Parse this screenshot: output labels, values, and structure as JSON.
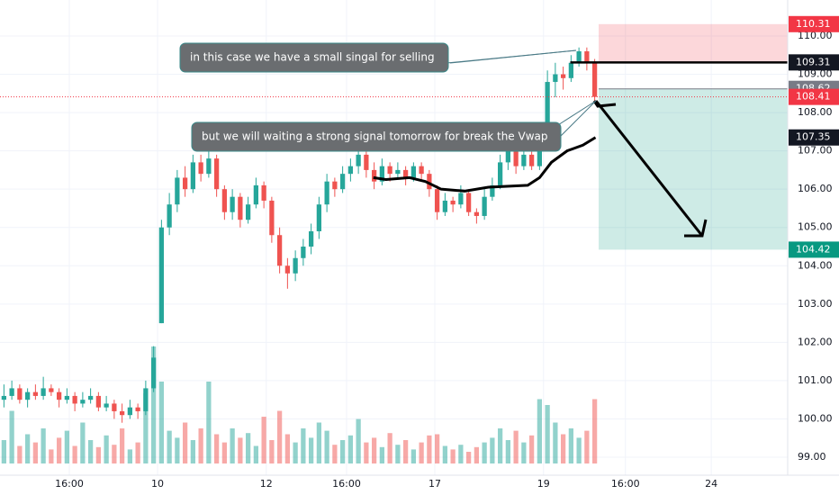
{
  "chart_data": {
    "type": "candlestick",
    "xlim": [
      0,
      100
    ],
    "ylim": [
      98.53,
      110.94
    ],
    "xticks": [
      {
        "value": 8.8,
        "label": "16:00"
      },
      {
        "value": 20,
        "label": "10"
      },
      {
        "value": 33.8,
        "label": "12"
      },
      {
        "value": 44,
        "label": "16:00"
      },
      {
        "value": 55.2,
        "label": "17"
      },
      {
        "value": 69,
        "label": "19"
      },
      {
        "value": 79.4,
        "label": "16:00"
      },
      {
        "value": 90.3,
        "label": "24"
      }
    ],
    "yticks": [
      {
        "value": 99,
        "label": "99.00"
      },
      {
        "value": 100,
        "label": "100.00"
      },
      {
        "value": 101,
        "label": "101.00"
      },
      {
        "value": 102,
        "label": "102.00"
      },
      {
        "value": 103,
        "label": "103.00"
      },
      {
        "value": 104,
        "label": "104.00"
      },
      {
        "value": 105,
        "label": "105.00"
      },
      {
        "value": 106,
        "label": "106.00"
      },
      {
        "value": 107,
        "label": "107.00"
      },
      {
        "value": 108,
        "label": "108.00"
      },
      {
        "value": 109,
        "label": "109.00"
      },
      {
        "value": 110,
        "label": "110.00"
      }
    ],
    "grid": true,
    "up_color": "#26a69a",
    "down_color": "#ef5350",
    "open": [
      100.5,
      100.6,
      100.8,
      100.5,
      100.7,
      100.6,
      100.8,
      100.7,
      100.5,
      100.6,
      100.4,
      100.5,
      100.6,
      100.3,
      100.4,
      100.2,
      100.1,
      100.3,
      100.2,
      100.8,
      102.5,
      105.0,
      105.6,
      106.3,
      106.0,
      106.7,
      106.4,
      106.8,
      106.0,
      105.4,
      105.8,
      105.2,
      105.6,
      106.1,
      105.7,
      104.8,
      104.0,
      103.8,
      104.2,
      104.5,
      104.9,
      105.6,
      106.2,
      106.0,
      106.4,
      106.6,
      106.9,
      106.5,
      106.2,
      106.6,
      106.4,
      106.5,
      106.3,
      106.6,
      106.4,
      106.0,
      105.4,
      105.7,
      105.6,
      105.9,
      105.4,
      105.3,
      105.8,
      106.1,
      106.7,
      107.0,
      106.6,
      106.9,
      106.6,
      107.1,
      108.8,
      109.0,
      108.9,
      109.3,
      109.6,
      109.3
    ],
    "high": [
      100.9,
      101.0,
      100.9,
      100.8,
      100.9,
      101.1,
      100.9,
      100.8,
      100.8,
      100.7,
      100.7,
      100.8,
      100.7,
      100.6,
      100.5,
      100.4,
      100.5,
      100.4,
      101.0,
      101.9,
      105.2,
      105.9,
      106.5,
      106.6,
      106.9,
      106.9,
      107.0,
      106.9,
      106.1,
      106.0,
      105.9,
      105.8,
      106.3,
      106.2,
      105.8,
      105.0,
      104.2,
      104.4,
      104.7,
      105.1,
      105.8,
      106.4,
      106.3,
      106.6,
      106.8,
      107.1,
      107.0,
      106.7,
      106.8,
      106.7,
      106.7,
      106.6,
      106.7,
      106.7,
      106.5,
      106.1,
      105.9,
      105.8,
      106.1,
      106.0,
      105.5,
      106.0,
      106.3,
      106.9,
      107.2,
      107.1,
      107.1,
      107.0,
      107.3,
      109.1,
      109.3,
      109.2,
      109.5,
      109.7,
      109.7,
      109.4
    ],
    "low": [
      100.3,
      100.5,
      100.4,
      100.3,
      100.5,
      100.5,
      100.6,
      100.3,
      100.4,
      100.2,
      100.3,
      100.4,
      100.2,
      100.2,
      100.0,
      99.9,
      100.0,
      100.0,
      100.1,
      100.7,
      102.5,
      104.8,
      105.4,
      105.8,
      105.9,
      106.2,
      106.3,
      105.8,
      105.2,
      105.2,
      105.0,
      105.1,
      105.5,
      105.5,
      104.6,
      103.8,
      103.4,
      103.6,
      104.0,
      104.3,
      104.7,
      105.4,
      105.8,
      105.9,
      106.2,
      106.4,
      106.3,
      106.0,
      106.1,
      106.2,
      106.3,
      106.1,
      106.2,
      106.2,
      105.8,
      105.2,
      105.3,
      105.4,
      105.5,
      105.3,
      105.1,
      105.2,
      105.7,
      106.0,
      106.5,
      106.4,
      106.5,
      106.5,
      106.5,
      107.0,
      108.4,
      108.6,
      108.8,
      109.2,
      109.1,
      108.3
    ],
    "close": [
      100.6,
      100.8,
      100.5,
      100.7,
      100.6,
      100.8,
      100.7,
      100.5,
      100.6,
      100.4,
      100.5,
      100.6,
      100.3,
      100.4,
      100.2,
      100.1,
      100.3,
      100.2,
      100.8,
      101.6,
      105.0,
      105.6,
      106.3,
      106.0,
      106.7,
      106.4,
      106.8,
      106.0,
      105.4,
      105.8,
      105.2,
      105.6,
      106.1,
      105.7,
      104.8,
      104.0,
      103.8,
      104.2,
      104.5,
      104.9,
      105.6,
      106.2,
      106.0,
      106.4,
      106.6,
      106.9,
      106.5,
      106.2,
      106.6,
      106.4,
      106.5,
      106.3,
      106.6,
      106.4,
      106.0,
      105.4,
      105.7,
      105.6,
      105.9,
      105.4,
      105.3,
      105.8,
      106.1,
      106.7,
      107.0,
      106.6,
      106.9,
      106.6,
      107.1,
      108.8,
      109.0,
      108.9,
      109.3,
      109.6,
      109.3,
      108.41
    ],
    "volume_ylim": [
      0,
      100
    ],
    "volume": [
      20,
      45,
      15,
      25,
      18,
      30,
      12,
      22,
      28,
      15,
      35,
      20,
      14,
      24,
      16,
      30,
      12,
      18,
      60,
      100,
      70,
      28,
      22,
      35,
      20,
      30,
      70,
      25,
      18,
      30,
      22,
      26,
      15,
      40,
      20,
      45,
      25,
      18,
      30,
      22,
      35,
      28,
      16,
      20,
      24,
      38,
      18,
      22,
      14,
      26,
      16,
      20,
      12,
      18,
      24,
      25,
      15,
      12,
      16,
      10,
      14,
      18,
      22,
      30,
      20,
      28,
      18,
      24,
      55,
      50,
      35,
      25,
      30,
      22,
      28,
      55
    ],
    "vwap": {
      "x": [
        47.4,
        49,
        52,
        54,
        56,
        59,
        62,
        67,
        68.5,
        70,
        72,
        74,
        75.6
      ],
      "values": [
        106.3,
        106.25,
        106.3,
        106.2,
        106.0,
        105.95,
        106.05,
        106.1,
        106.3,
        106.7,
        107.0,
        107.15,
        107.35
      ]
    },
    "stop_zone": [
      109.31,
      110.31
    ],
    "target_zone": [
      108.62,
      104.42
    ],
    "last_price": 108.41,
    "entry_line": 109.31,
    "markers": [
      {
        "value": 110.31,
        "color": "#f23645"
      },
      {
        "value": 109.31,
        "color": "#131722"
      },
      {
        "value": 108.62,
        "color": "#787b86"
      },
      {
        "value": 108.41,
        "color": "#f23645"
      },
      {
        "value": 107.35,
        "color": "#131722"
      },
      {
        "value": 104.42,
        "color": "#089981"
      }
    ],
    "annotations": [
      "in this case we have a small singal for selling",
      "but we will waiting a strong signal tomorrow for break the Vwap"
    ]
  }
}
